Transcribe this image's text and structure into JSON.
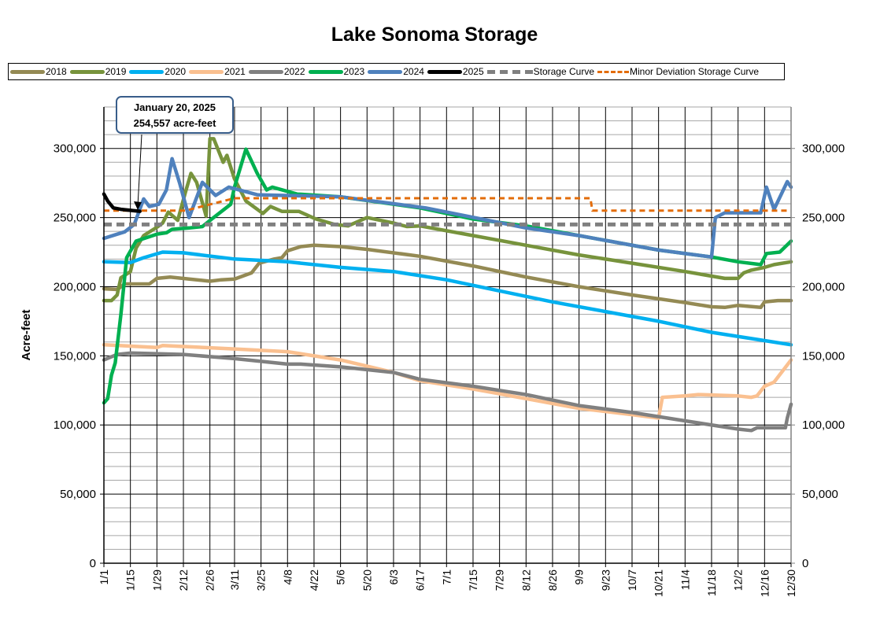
{
  "chart_data": {
    "type": "line",
    "title": "Lake Sonoma Storage",
    "ylabel": "Acre-feet",
    "xlabel": "",
    "ylim": [
      0,
      330000
    ],
    "y_ticks": [
      0,
      50000,
      100000,
      150000,
      200000,
      250000,
      300000
    ],
    "y_tick_labels": [
      "0",
      "50,000",
      "100,000",
      "150,000",
      "200,000",
      "250,000",
      "300,000"
    ],
    "x_tick_labels": [
      "1/1",
      "1/15",
      "1/29",
      "2/12",
      "2/26",
      "3/11",
      "3/25",
      "4/8",
      "4/22",
      "5/6",
      "5/20",
      "6/3",
      "6/17",
      "7/1",
      "7/15",
      "7/29",
      "8/12",
      "8/26",
      "9/9",
      "9/23",
      "10/7",
      "10/21",
      "11/4",
      "11/18",
      "12/2",
      "12/16",
      "12/30"
    ],
    "grid": true,
    "secondary_y_axis": true,
    "legend_placement": "top",
    "annotation": {
      "line1": "January 20, 2025",
      "line2": "254,557 acre-feet",
      "x": "1/20",
      "y": 254557
    },
    "series": [
      {
        "name": "2018",
        "color": "#948a54",
        "dash": false,
        "points": [
          [
            "1/1",
            198500
          ],
          [
            "1/8",
            198000
          ],
          [
            "1/12",
            202000
          ],
          [
            "1/25",
            202000
          ],
          [
            "1/29",
            206000
          ],
          [
            "2/5",
            207000
          ],
          [
            "2/26",
            204000
          ],
          [
            "3/4",
            205000
          ],
          [
            "3/11",
            205500
          ],
          [
            "3/15",
            207500
          ],
          [
            "3/20",
            210000
          ],
          [
            "3/24",
            217000
          ],
          [
            "4/1",
            220000
          ],
          [
            "4/5",
            221000
          ],
          [
            "4/8",
            226000
          ],
          [
            "4/15",
            229000
          ],
          [
            "4/22",
            230000
          ],
          [
            "5/6",
            229000
          ],
          [
            "5/20",
            227000
          ],
          [
            "6/17",
            222000
          ],
          [
            "7/15",
            215000
          ],
          [
            "8/12",
            207000
          ],
          [
            "9/9",
            200000
          ],
          [
            "10/7",
            194000
          ],
          [
            "11/4",
            188500
          ],
          [
            "11/18",
            185500
          ],
          [
            "11/25",
            185000
          ],
          [
            "12/2",
            186500
          ],
          [
            "12/14",
            185000
          ],
          [
            "12/16",
            189000
          ],
          [
            "12/23",
            190000
          ],
          [
            "12/30",
            190000
          ]
        ]
      },
      {
        "name": "2019",
        "color": "#77933c",
        "dash": false,
        "points": [
          [
            "1/1",
            190000
          ],
          [
            "1/5",
            190000
          ],
          [
            "1/8",
            194000
          ],
          [
            "1/10",
            206500
          ],
          [
            "1/15",
            211000
          ],
          [
            "1/18",
            228000
          ],
          [
            "1/22",
            237000
          ],
          [
            "1/29",
            243000
          ],
          [
            "2/1",
            246000
          ],
          [
            "2/4",
            254000
          ],
          [
            "2/9",
            248000
          ],
          [
            "2/13",
            268000
          ],
          [
            "2/16",
            282000
          ],
          [
            "2/19",
            275500
          ],
          [
            "2/24",
            251000
          ],
          [
            "2/26",
            307000
          ],
          [
            "2/28",
            307000
          ],
          [
            "3/5",
            290000
          ],
          [
            "3/7",
            295000
          ],
          [
            "3/11",
            278000
          ],
          [
            "3/17",
            262000
          ],
          [
            "3/26",
            253000
          ],
          [
            "3/30",
            258000
          ],
          [
            "4/5",
            254500
          ],
          [
            "4/14",
            254500
          ],
          [
            "4/23",
            249000
          ],
          [
            "5/3",
            245000
          ],
          [
            "5/10",
            244000
          ],
          [
            "5/20",
            250000
          ],
          [
            "6/3",
            246000
          ],
          [
            "6/10",
            243500
          ],
          [
            "6/17",
            244000
          ],
          [
            "7/15",
            237000
          ],
          [
            "8/12",
            230000
          ],
          [
            "9/9",
            223000
          ],
          [
            "10/7",
            217000
          ],
          [
            "11/4",
            211000
          ],
          [
            "11/25",
            206000
          ],
          [
            "12/2",
            206000
          ],
          [
            "12/5",
            210000
          ],
          [
            "12/9",
            212000
          ],
          [
            "12/16",
            214000
          ],
          [
            "12/21",
            216000
          ],
          [
            "12/30",
            218000
          ]
        ]
      },
      {
        "name": "2020",
        "color": "#00b0f0",
        "dash": false,
        "points": [
          [
            "1/1",
            218000
          ],
          [
            "1/15",
            217500
          ],
          [
            "1/22",
            221000
          ],
          [
            "2/1",
            225000
          ],
          [
            "2/12",
            224500
          ],
          [
            "3/11",
            220000
          ],
          [
            "4/8",
            218000
          ],
          [
            "5/6",
            214000
          ],
          [
            "6/3",
            211000
          ],
          [
            "7/1",
            205000
          ],
          [
            "7/29",
            197000
          ],
          [
            "8/26",
            189000
          ],
          [
            "9/23",
            182000
          ],
          [
            "10/21",
            175000
          ],
          [
            "11/18",
            167000
          ],
          [
            "12/16",
            161000
          ],
          [
            "12/30",
            158000
          ]
        ]
      },
      {
        "name": "2021",
        "color": "#fac090",
        "dash": false,
        "points": [
          [
            "1/1",
            158000
          ],
          [
            "1/29",
            156000
          ],
          [
            "2/1",
            157500
          ],
          [
            "3/11",
            155000
          ],
          [
            "4/8",
            153000
          ],
          [
            "5/6",
            147000
          ],
          [
            "6/3",
            138000
          ],
          [
            "6/17",
            132000
          ],
          [
            "7/15",
            126000
          ],
          [
            "8/12",
            119000
          ],
          [
            "9/9",
            112000
          ],
          [
            "10/7",
            107500
          ],
          [
            "10/21",
            105000
          ],
          [
            "10/23",
            120000
          ],
          [
            "11/4",
            121000
          ],
          [
            "11/11",
            122000
          ],
          [
            "12/2",
            121000
          ],
          [
            "12/9",
            120000
          ],
          [
            "12/12",
            121000
          ],
          [
            "12/16",
            128000
          ],
          [
            "12/21",
            131000
          ],
          [
            "12/30",
            147000
          ]
        ]
      },
      {
        "name": "2022",
        "color": "#808080",
        "dash": false,
        "points": [
          [
            "1/1",
            147000
          ],
          [
            "1/8",
            151000
          ],
          [
            "1/15",
            152000
          ],
          [
            "2/12",
            151000
          ],
          [
            "3/11",
            148000
          ],
          [
            "4/8",
            144000
          ],
          [
            "4/15",
            144000
          ],
          [
            "5/6",
            142000
          ],
          [
            "6/3",
            138000
          ],
          [
            "6/17",
            133000
          ],
          [
            "7/15",
            128000
          ],
          [
            "8/12",
            122000
          ],
          [
            "9/9",
            114000
          ],
          [
            "10/7",
            109000
          ],
          [
            "11/4",
            103000
          ],
          [
            "12/2",
            97000
          ],
          [
            "12/9",
            96000
          ],
          [
            "12/12",
            98000
          ],
          [
            "12/27",
            98000
          ],
          [
            "12/28",
            105000
          ],
          [
            "12/30",
            115000
          ]
        ]
      },
      {
        "name": "2023",
        "color": "#00b050",
        "dash": false,
        "points": [
          [
            "1/1",
            116000
          ],
          [
            "1/3",
            119000
          ],
          [
            "1/5",
            136000
          ],
          [
            "1/7",
            145000
          ],
          [
            "1/10",
            180000
          ],
          [
            "1/13",
            221000
          ],
          [
            "1/18",
            233000
          ],
          [
            "1/29",
            238000
          ],
          [
            "2/3",
            239000
          ],
          [
            "2/6",
            241500
          ],
          [
            "2/15",
            242500
          ],
          [
            "2/22",
            243500
          ],
          [
            "2/27",
            249000
          ],
          [
            "3/9",
            259600
          ],
          [
            "3/11",
            272000
          ],
          [
            "3/17",
            299500
          ],
          [
            "3/23",
            282000
          ],
          [
            "3/28",
            270000
          ],
          [
            "3/31",
            272000
          ],
          [
            "4/13",
            267000
          ],
          [
            "5/6",
            265000
          ],
          [
            "6/17",
            257000
          ],
          [
            "7/15",
            249000
          ],
          [
            "8/12",
            244000
          ],
          [
            "9/9",
            237000
          ],
          [
            "10/21",
            226500
          ],
          [
            "11/18",
            221500
          ],
          [
            "12/2",
            218000
          ],
          [
            "12/14",
            216000
          ],
          [
            "12/17",
            224000
          ],
          [
            "12/24",
            225000
          ],
          [
            "12/30",
            233000
          ]
        ]
      },
      {
        "name": "2024",
        "color": "#4f81bd",
        "dash": false,
        "points": [
          [
            "1/1",
            235000
          ],
          [
            "1/12",
            239700
          ],
          [
            "1/17",
            245000
          ],
          [
            "1/22",
            263500
          ],
          [
            "1/25",
            258000
          ],
          [
            "1/30",
            259600
          ],
          [
            "2/3",
            270000
          ],
          [
            "2/6",
            292600
          ],
          [
            "2/10",
            275000
          ],
          [
            "2/15",
            250000
          ],
          [
            "2/22",
            275500
          ],
          [
            "3/1",
            266000
          ],
          [
            "3/8",
            272000
          ],
          [
            "3/23",
            266500
          ],
          [
            "5/6",
            265000
          ],
          [
            "6/20",
            257000
          ],
          [
            "8/12",
            242500
          ],
          [
            "9/9",
            237000
          ],
          [
            "10/21",
            226500
          ],
          [
            "11/18",
            221500
          ],
          [
            "11/20",
            250000
          ],
          [
            "11/25",
            253500
          ],
          [
            "12/14",
            253500
          ],
          [
            "12/17",
            272000
          ],
          [
            "12/21",
            256000
          ],
          [
            "12/28",
            276000
          ],
          [
            "12/30",
            272000
          ]
        ]
      },
      {
        "name": "2025",
        "color": "#000000",
        "dash": false,
        "points": [
          [
            "1/1",
            267000
          ],
          [
            "1/3",
            262000
          ],
          [
            "1/6",
            257000
          ],
          [
            "1/10",
            256000
          ],
          [
            "1/20",
            254557
          ]
        ]
      },
      {
        "name": "Storage Curve",
        "color": "#808080",
        "dash": true,
        "points": [
          [
            "1/1",
            245000
          ],
          [
            "12/30",
            245000
          ]
        ]
      },
      {
        "name": "Minor Deviation Storage Curve",
        "color": "#e36c09",
        "dash": true,
        "points": [
          [
            "1/1",
            255000
          ],
          [
            "2/13",
            255000
          ],
          [
            "3/11",
            264000
          ],
          [
            "9/15",
            264000
          ],
          [
            "9/16",
            255000
          ],
          [
            "12/30",
            255000
          ]
        ]
      }
    ]
  }
}
